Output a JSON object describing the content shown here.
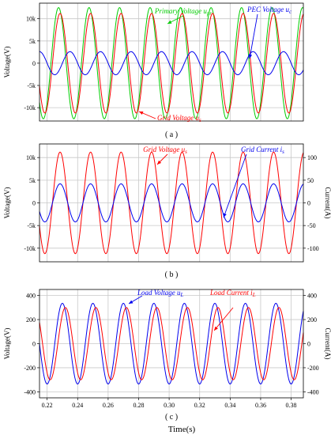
{
  "figure": {
    "xlabel": "Time(s)",
    "x_ticks": [
      "0.22",
      "0.24",
      "0.26",
      "0.28",
      "0.30",
      "0.32",
      "0.34",
      "0.36",
      "0.38"
    ]
  },
  "chart_data": [
    {
      "type": "line",
      "subtitle": "( a )",
      "xlim": [
        0.215,
        0.388
      ],
      "ylabel": "Voltage(V)",
      "ylim": [
        -13000,
        13500
      ],
      "y_ticks": [
        {
          "v": 10000,
          "label": "10k"
        },
        {
          "v": 5000,
          "label": "5k"
        },
        {
          "v": 0,
          "label": "0"
        },
        {
          "v": -5000,
          "label": "-5k"
        },
        {
          "v": -10000,
          "label": "-10k"
        }
      ],
      "grid": true,
      "series": [
        {
          "name": "Primary Voltage u",
          "sub": "pr",
          "color": "#00cc00",
          "amplitude": 12500,
          "frequency_hz": 50,
          "phase_deg": 315,
          "axis": "left"
        },
        {
          "name": "Grid Voltage u",
          "sub": "s",
          "color": "#ff0000",
          "amplitude": 11200,
          "frequency_hz": 50,
          "phase_deg": 297,
          "axis": "left"
        },
        {
          "name": "PEC Voltage u",
          "sub": "c",
          "color": "#0000ee",
          "amplitude": 2600,
          "frequency_hz": 50,
          "phase_deg": 180,
          "axis": "left"
        }
      ]
    },
    {
      "type": "line",
      "subtitle": "( b )",
      "xlim": [
        0.215,
        0.388
      ],
      "ylabel": "Voltage(V)",
      "ylabel_right": "Current(A)",
      "ylim": [
        -13000,
        13000
      ],
      "ylim_right": [
        -130,
        130
      ],
      "y_ticks": [
        {
          "v": 10000,
          "label": "10k"
        },
        {
          "v": 5000,
          "label": "5k"
        },
        {
          "v": 0,
          "label": "0"
        },
        {
          "v": -5000,
          "label": "-5k"
        },
        {
          "v": -10000,
          "label": "-10k"
        }
      ],
      "y_ticks_right": [
        {
          "v": 100,
          "label": "100"
        },
        {
          "v": 50,
          "label": "50"
        },
        {
          "v": 0,
          "label": "0"
        },
        {
          "v": -50,
          "label": "-50"
        },
        {
          "v": -100,
          "label": "-100"
        }
      ],
      "grid": true,
      "series": [
        {
          "name": "Grid Voltage u",
          "sub": "s",
          "color": "#ff0000",
          "amplitude": 11200,
          "frequency_hz": 50,
          "phase_deg": 297,
          "axis": "left"
        },
        {
          "name": "Grid Current i",
          "sub": "s",
          "color": "#0000ee",
          "amplitude": 42,
          "frequency_hz": 50,
          "phase_deg": 297,
          "axis": "right"
        }
      ]
    },
    {
      "type": "line",
      "subtitle": "( c )",
      "xlim": [
        0.215,
        0.388
      ],
      "ylabel": "Voltage(V)",
      "ylabel_right": "Current(A)",
      "ylim": [
        -450,
        450
      ],
      "ylim_right": [
        -450,
        450
      ],
      "y_ticks": [
        {
          "v": 400,
          "label": "400"
        },
        {
          "v": 200,
          "label": "200"
        },
        {
          "v": 0,
          "label": "0"
        },
        {
          "v": -200,
          "label": "-200"
        },
        {
          "v": -400,
          "label": "-400"
        }
      ],
      "y_ticks_right": [
        {
          "v": 400,
          "label": "400"
        },
        {
          "v": 200,
          "label": "200"
        },
        {
          "v": 0,
          "label": "0"
        },
        {
          "v": -200,
          "label": "-200"
        },
        {
          "v": -400,
          "label": "-400"
        }
      ],
      "grid": true,
      "series": [
        {
          "name": "Load Voltage u",
          "sub": "L",
          "color": "#0000ee",
          "amplitude": 335,
          "frequency_hz": 50,
          "phase_deg": 270,
          "axis": "left"
        },
        {
          "name": "Load Current i",
          "sub": "L",
          "color": "#ff0000",
          "amplitude": 300,
          "frequency_hz": 50,
          "phase_deg": 234,
          "axis": "right"
        }
      ]
    }
  ]
}
